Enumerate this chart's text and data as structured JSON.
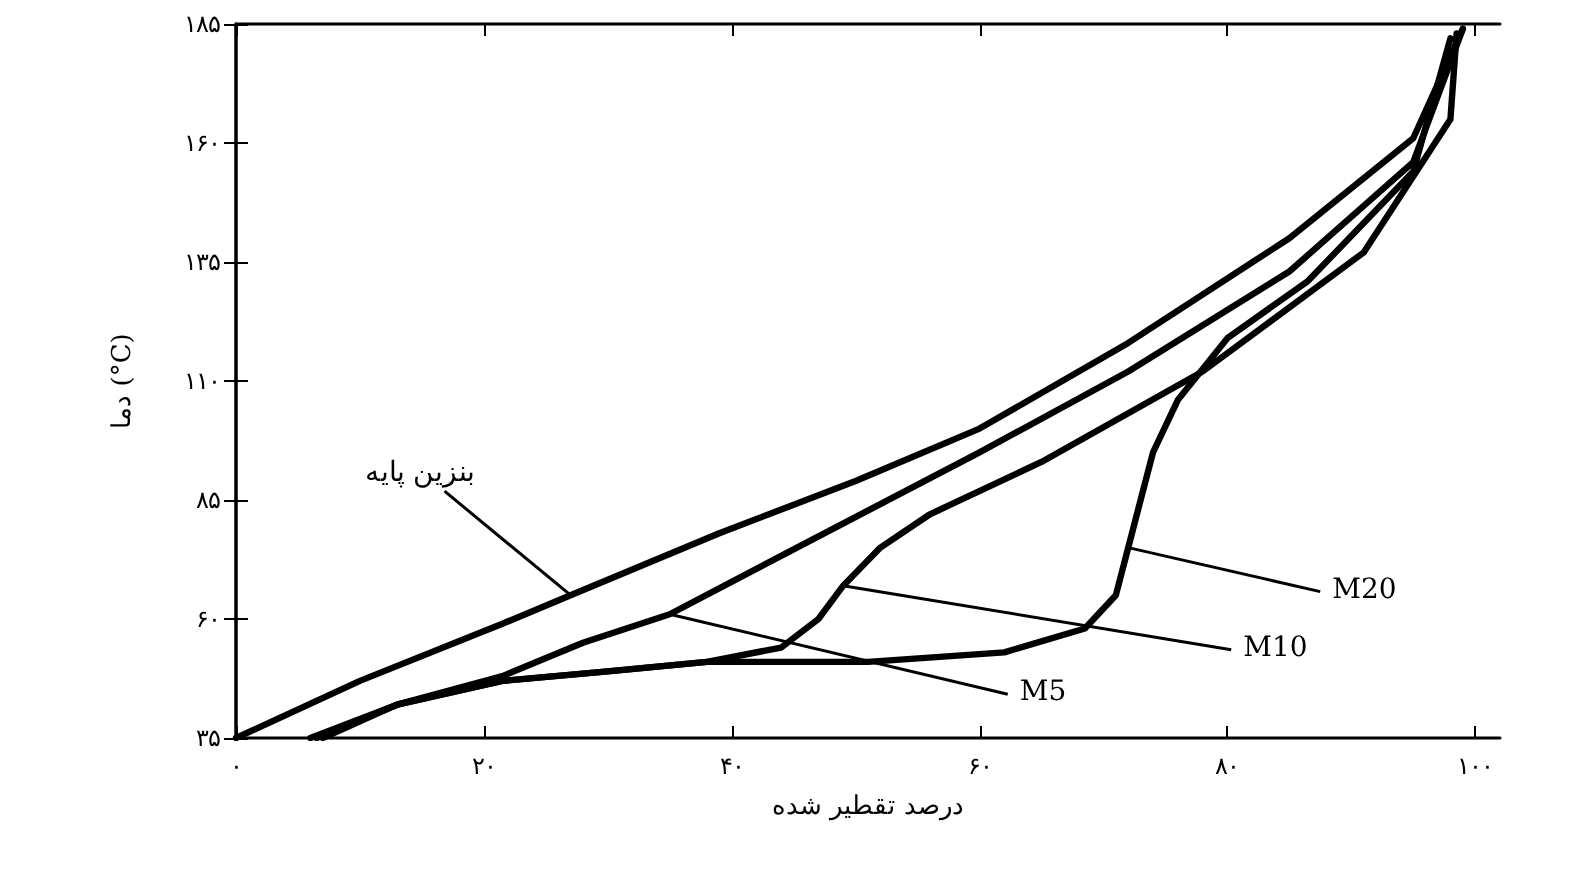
{
  "chart_data": {
    "type": "line",
    "xlabel": "درصد تقطیر شده",
    "ylabel": "دما (°C)",
    "xlim": [
      0,
      102
    ],
    "ylim": [
      35,
      185
    ],
    "xticks": [
      {
        "value": 0,
        "label": "۰"
      },
      {
        "value": 20,
        "label": "۲۰"
      },
      {
        "value": 40,
        "label": "۴۰"
      },
      {
        "value": 60,
        "label": "۶۰"
      },
      {
        "value": 80,
        "label": "۸۰"
      },
      {
        "value": 100,
        "label": "۱۰۰"
      }
    ],
    "yticks": [
      {
        "value": 35,
        "label": "۳۵"
      },
      {
        "value": 60,
        "label": "۶۰"
      },
      {
        "value": 85,
        "label": "۸۵"
      },
      {
        "value": 110,
        "label": "۱۱۰"
      },
      {
        "value": 135,
        "label": "۱۳۵"
      },
      {
        "value": 160,
        "label": "۱۶۰"
      },
      {
        "value": 185,
        "label": "۱۸۵"
      }
    ],
    "grid": false,
    "marker": "none",
    "line_style": "solid",
    "annotations": [
      {
        "text": "بنزین پایه",
        "x": 27,
        "y": 65
      },
      {
        "text": "M5",
        "x": 35,
        "y": 61
      },
      {
        "text": "M10",
        "x": 49,
        "y": 67
      },
      {
        "text": "M20",
        "x": 72,
        "y": 75
      }
    ],
    "series": [
      {
        "color": "#000000",
        "x": [
          0,
          10,
          21.5,
          27,
          39,
          50,
          60,
          72,
          85,
          95,
          99
        ],
        "values": [
          35,
          47,
          59,
          65,
          78,
          89,
          100,
          118,
          140,
          161,
          184
        ]
      },
      {
        "color": "#000000",
        "x": [
          6,
          13,
          21.5,
          28,
          35,
          46,
          60,
          72,
          85,
          95,
          99
        ],
        "values": [
          35,
          42,
          48,
          55,
          61,
          76,
          95,
          112,
          133,
          156,
          184
        ]
      },
      {
        "color": "#000000",
        "x": [
          6.5,
          13,
          21.5,
          30,
          38,
          44,
          47,
          49,
          52,
          56,
          65,
          78,
          91,
          98,
          98.5
        ],
        "values": [
          35,
          42,
          47,
          49,
          51,
          54,
          60,
          67,
          75,
          82,
          93,
          112,
          137,
          165,
          183
        ]
      },
      {
        "color": "#000000",
        "x": [
          7,
          13,
          21.5,
          30,
          38,
          51,
          62,
          68.5,
          71,
          72,
          74,
          76,
          80,
          86.5,
          95,
          98
        ],
        "values": [
          35,
          42,
          47,
          49,
          51,
          51,
          53,
          58,
          65,
          75,
          95,
          106,
          119,
          131,
          154,
          182
        ]
      }
    ]
  }
}
